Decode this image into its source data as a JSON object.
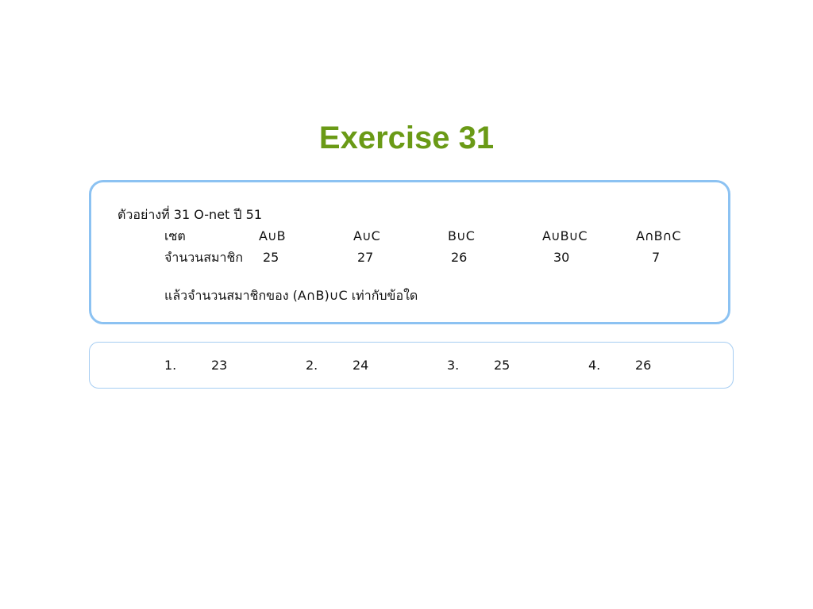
{
  "title": "Exercise 31",
  "colors": {
    "title": "#6a9a16",
    "question_border": "#8cc2f2",
    "answer_border": "#a6cdf2",
    "text": "#111111"
  },
  "question": {
    "heading": "ตัวอย่างที่ 31 O-net ปี 51",
    "set_row_label": "เซต",
    "sets": [
      "A∪B",
      "A∪C",
      "B∪C",
      "A∪B∪C",
      "A∩B∩C"
    ],
    "count_row_label": "จำนวนสมาชิก",
    "counts": [
      "25",
      "27",
      "26",
      "30",
      "7"
    ],
    "prompt": "แล้วจำนวนสมาชิกของ (A∩B)∪C เท่ากับข้อใด"
  },
  "answers": [
    {
      "number": "1.",
      "value": "23"
    },
    {
      "number": "2.",
      "value": "24"
    },
    {
      "number": "3.",
      "value": "25"
    },
    {
      "number": "4.",
      "value": "26"
    }
  ]
}
